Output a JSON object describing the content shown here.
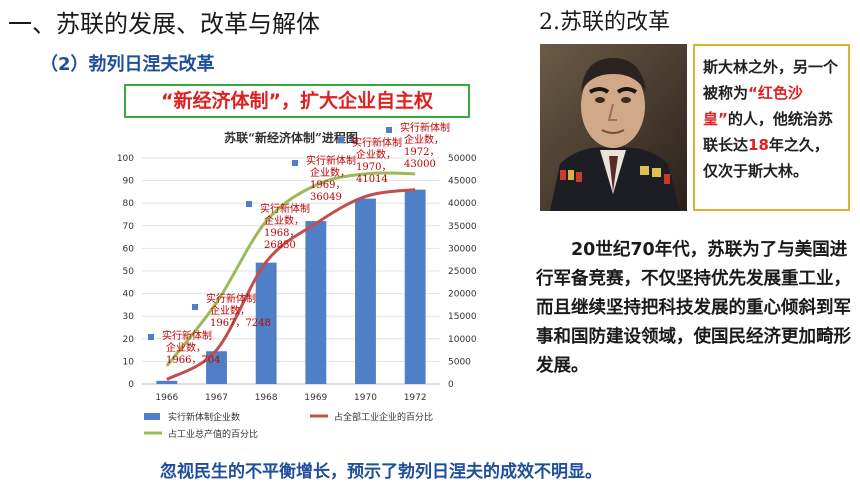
{
  "slide": {
    "title": "一、苏联的发展、改革与解体",
    "subtitle": "（2）勃列日涅夫改革",
    "section_title": "2.苏联的改革",
    "banner": "“新经济体制”，扩大企业自主权",
    "quote": {
      "part1": "斯大林之外，另一个被称为",
      "highlight1": "“红色沙皇”",
      "part2": "的人，他统治苏联长达",
      "highlight2": "18",
      "part3": "年之久，仅次于斯大林。"
    },
    "body": "20世纪70年代，苏联为了与美国进行军备竞赛，不仅坚持优先发展重工业，而且继续坚持把科技发展的重心倾斜到军事和国防建设领域，使国民经济更加畸形发展。",
    "conclusion": "忽视民生的不平衡增长，预示了勃列日涅夫的成效不明显。"
  },
  "chart_data": {
    "type": "bar",
    "title": "苏联“新经济体制”进程图",
    "categories": [
      "1966",
      "1967",
      "1968",
      "1969",
      "1970",
      "1972"
    ],
    "series": [
      {
        "name": "实行新体制企业数",
        "axis": "right",
        "values": [
          704,
          7248,
          26850,
          36049,
          41014,
          43000
        ],
        "color": "#4f7fc6"
      },
      {
        "name": "占全部工业企业的百分比",
        "axis": "left",
        "values": [
          2,
          15,
          54,
          71,
          83,
          86
        ],
        "color": "#c0504d"
      },
      {
        "name": "占工业总产值的百分比",
        "axis": "left",
        "values": [
          8,
          36,
          72,
          88,
          93,
          93
        ],
        "color": "#9bbb59"
      }
    ],
    "left_axis": {
      "ylim": [
        0,
        100
      ],
      "ticks": [
        "0",
        "10",
        "20",
        "30",
        "40",
        "50",
        "60",
        "70",
        "80",
        "90",
        "100"
      ]
    },
    "right_axis": {
      "ylim": [
        0,
        50000
      ],
      "ticks": [
        "0",
        "5000",
        "10000",
        "15000",
        "20000",
        "25000",
        "30000",
        "35000",
        "40000",
        "45000",
        "50000"
      ]
    },
    "point_labels": [
      [
        "实行新体制",
        "企业数，",
        "1966，704"
      ],
      [
        "实行新体制",
        "企业数，",
        "1967，7248"
      ],
      [
        "实行新体制",
        "企业数，",
        "1968，",
        "26850"
      ],
      [
        "实行新体制",
        "企业数，",
        "1969，",
        "36049"
      ],
      [
        "实行新体制",
        "企业数，",
        "1970，",
        "41014"
      ],
      [
        "实行新体制",
        "企业数，",
        "1972，",
        "43000"
      ]
    ],
    "legend_position": "bottom"
  }
}
